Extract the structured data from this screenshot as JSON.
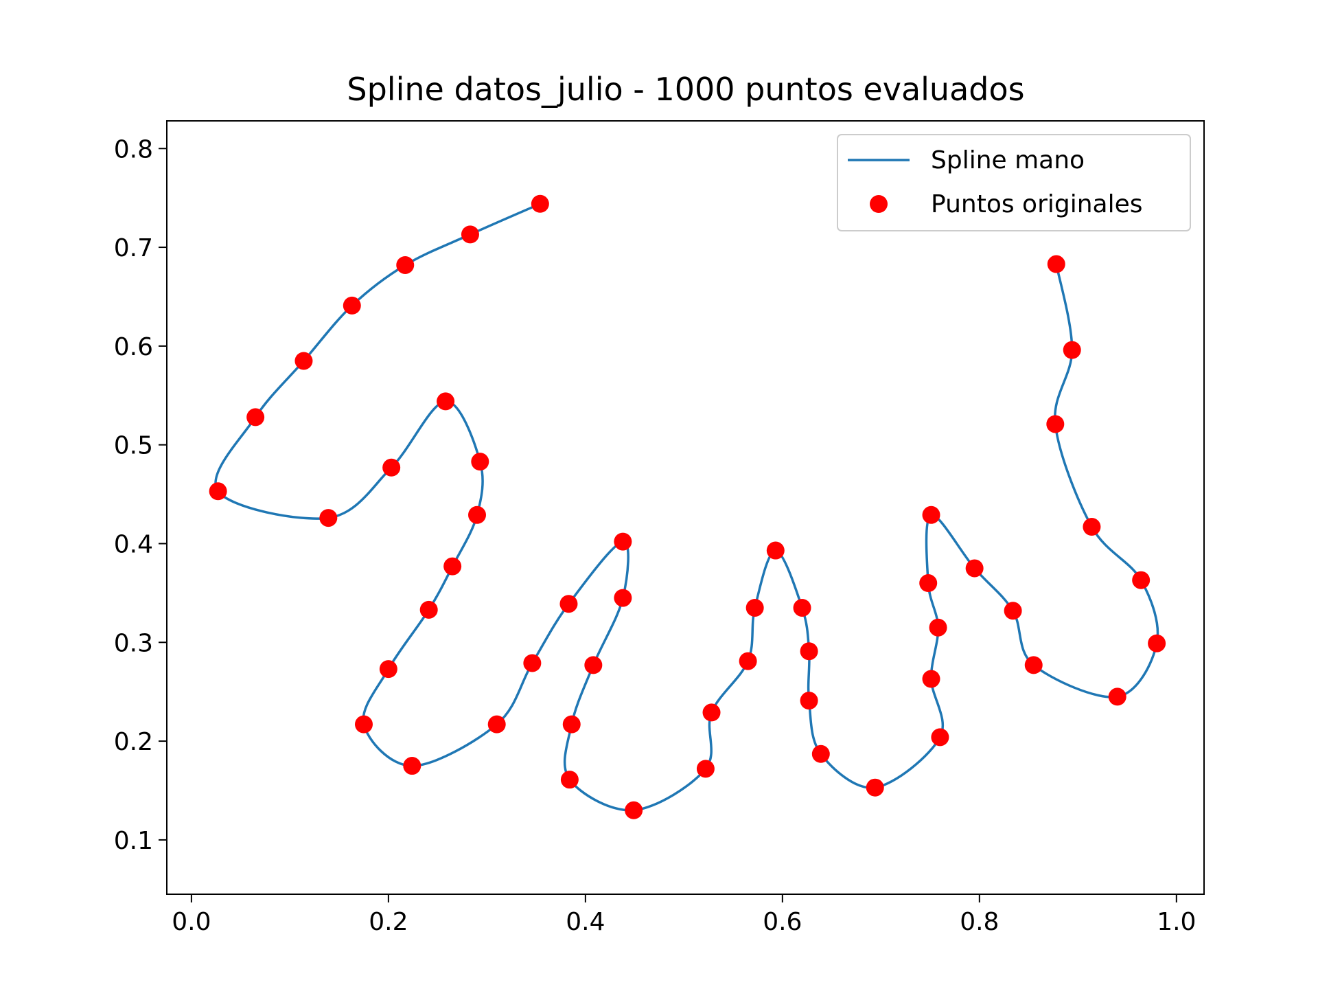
{
  "chart_data": {
    "type": "line",
    "title": "Spline datos_julio - 1000 puntos evaluados",
    "xlabel": "",
    "ylabel": "",
    "xlim": [
      -0.025,
      1.028
    ],
    "ylim": [
      0.045,
      0.828
    ],
    "xticks": [
      0.0,
      0.2,
      0.4,
      0.6,
      0.8,
      1.0
    ],
    "xtick_labels": [
      "0.0",
      "0.2",
      "0.4",
      "0.6",
      "0.8",
      "1.0"
    ],
    "yticks": [
      0.1,
      0.2,
      0.3,
      0.4,
      0.5,
      0.6,
      0.7,
      0.8
    ],
    "ytick_labels": [
      "0.1",
      "0.2",
      "0.3",
      "0.4",
      "0.5",
      "0.6",
      "0.7",
      "0.8"
    ],
    "grid": false,
    "legend_position": "top-right",
    "series": [
      {
        "name": "Spline mano",
        "kind": "line",
        "color": "#1f77b4",
        "x": [
          0.354,
          0.283,
          0.217,
          0.163,
          0.114,
          0.065,
          0.027,
          0.139,
          0.203,
          0.258,
          0.293,
          0.29,
          0.265,
          0.241,
          0.2,
          0.175,
          0.224,
          0.31,
          0.346,
          0.383,
          0.438,
          0.438,
          0.408,
          0.386,
          0.384,
          0.449,
          0.522,
          0.528,
          0.565,
          0.572,
          0.593,
          0.62,
          0.627,
          0.627,
          0.639,
          0.694,
          0.76,
          0.751,
          0.758,
          0.748,
          0.751,
          0.795,
          0.834,
          0.855,
          0.94,
          0.98,
          0.964,
          0.914,
          0.877,
          0.894,
          0.878
        ],
        "y": [
          0.744,
          0.713,
          0.682,
          0.641,
          0.585,
          0.528,
          0.453,
          0.426,
          0.477,
          0.544,
          0.483,
          0.429,
          0.377,
          0.333,
          0.273,
          0.217,
          0.175,
          0.217,
          0.279,
          0.339,
          0.402,
          0.345,
          0.277,
          0.217,
          0.161,
          0.13,
          0.172,
          0.229,
          0.281,
          0.335,
          0.393,
          0.335,
          0.291,
          0.241,
          0.187,
          0.153,
          0.204,
          0.263,
          0.315,
          0.36,
          0.429,
          0.375,
          0.332,
          0.277,
          0.245,
          0.299,
          0.363,
          0.417,
          0.521,
          0.596,
          0.683
        ]
      },
      {
        "name": "Puntos originales",
        "kind": "scatter",
        "color": "#ff0000",
        "x": [
          0.354,
          0.283,
          0.217,
          0.163,
          0.114,
          0.065,
          0.027,
          0.139,
          0.203,
          0.258,
          0.293,
          0.29,
          0.265,
          0.241,
          0.2,
          0.175,
          0.224,
          0.31,
          0.346,
          0.383,
          0.438,
          0.438,
          0.408,
          0.386,
          0.384,
          0.449,
          0.522,
          0.528,
          0.565,
          0.572,
          0.593,
          0.62,
          0.627,
          0.627,
          0.639,
          0.694,
          0.76,
          0.751,
          0.758,
          0.748,
          0.751,
          0.795,
          0.834,
          0.855,
          0.94,
          0.98,
          0.964,
          0.914,
          0.877,
          0.894,
          0.878
        ],
        "y": [
          0.744,
          0.713,
          0.682,
          0.641,
          0.585,
          0.528,
          0.453,
          0.426,
          0.477,
          0.544,
          0.483,
          0.429,
          0.377,
          0.333,
          0.273,
          0.217,
          0.175,
          0.217,
          0.279,
          0.339,
          0.402,
          0.345,
          0.277,
          0.217,
          0.161,
          0.13,
          0.172,
          0.229,
          0.281,
          0.335,
          0.393,
          0.335,
          0.291,
          0.241,
          0.187,
          0.153,
          0.204,
          0.263,
          0.315,
          0.36,
          0.429,
          0.375,
          0.332,
          0.277,
          0.245,
          0.299,
          0.363,
          0.417,
          0.521,
          0.596,
          0.683
        ]
      }
    ]
  }
}
